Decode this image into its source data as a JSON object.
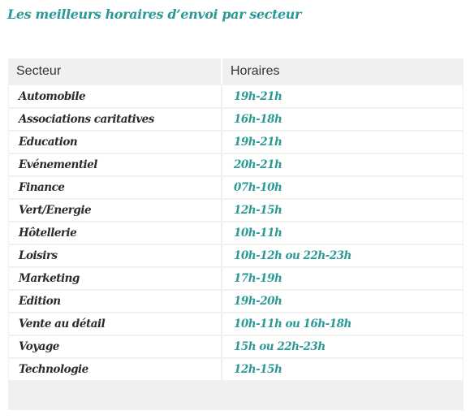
{
  "title": "Les meilleurs horaires d’envoi par secteur",
  "colors": {
    "accent": "#2a9a96",
    "header_bg": "#f0f0f0",
    "text": "#2b2b2b"
  },
  "table": {
    "headers": [
      "Secteur",
      "Horaires"
    ],
    "rows": [
      {
        "sector": "Automobile",
        "hours": "19h-21h"
      },
      {
        "sector": "Associations caritatives",
        "hours": "16h-18h"
      },
      {
        "sector": "Education",
        "hours": "19h-21h"
      },
      {
        "sector": "Evénementiel",
        "hours": "20h-21h"
      },
      {
        "sector": "Finance",
        "hours": "07h-10h"
      },
      {
        "sector": "Vert/Energie",
        "hours": "12h-15h"
      },
      {
        "sector": "Hôtellerie",
        "hours": "10h-11h"
      },
      {
        "sector": "Loisirs",
        "hours": "10h-12h ou 22h-23h"
      },
      {
        "sector": "Marketing",
        "hours": "17h-19h"
      },
      {
        "sector": "Edition",
        "hours": "19h-20h"
      },
      {
        "sector": "Vente au détail",
        "hours": "10h-11h ou 16h-18h"
      },
      {
        "sector": "Voyage",
        "hours": "15h ou 22h-23h"
      },
      {
        "sector": "Technologie",
        "hours": "12h-15h"
      }
    ]
  }
}
